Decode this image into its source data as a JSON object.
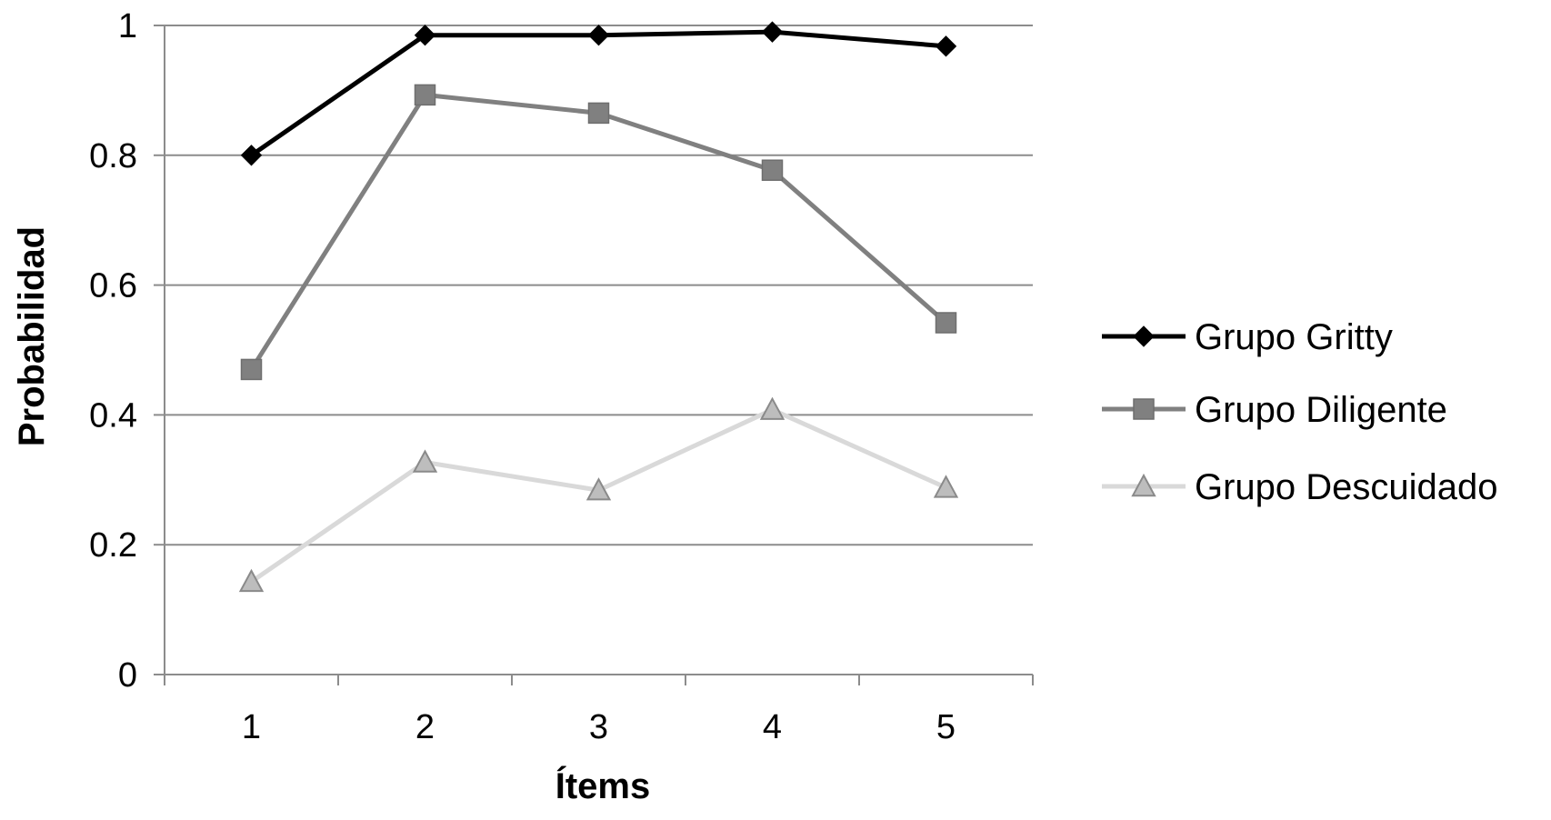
{
  "chart_data": {
    "type": "line",
    "title": "",
    "xlabel": "Ítems",
    "ylabel": "Probabilidad",
    "categories": [
      "1",
      "2",
      "3",
      "4",
      "5"
    ],
    "ylim": [
      0,
      1
    ],
    "yticks": [
      "0",
      "0.2",
      "0.4",
      "0.6",
      "0.8",
      "1"
    ],
    "grid": true,
    "legend_position": "right",
    "series": [
      {
        "name": "Grupo Gritty",
        "values": [
          0.8,
          0.985,
          0.985,
          0.99,
          0.968
        ],
        "color": "#000000",
        "marker": "diamond"
      },
      {
        "name": "Grupo Diligente",
        "values": [
          0.47,
          0.893,
          0.865,
          0.777,
          0.542
        ],
        "color": "#808080",
        "marker": "square"
      },
      {
        "name": "Grupo Descuidado",
        "values": [
          0.143,
          0.327,
          0.284,
          0.408,
          0.288
        ],
        "color": "#d9d9d9",
        "marker": "triangle"
      }
    ]
  }
}
